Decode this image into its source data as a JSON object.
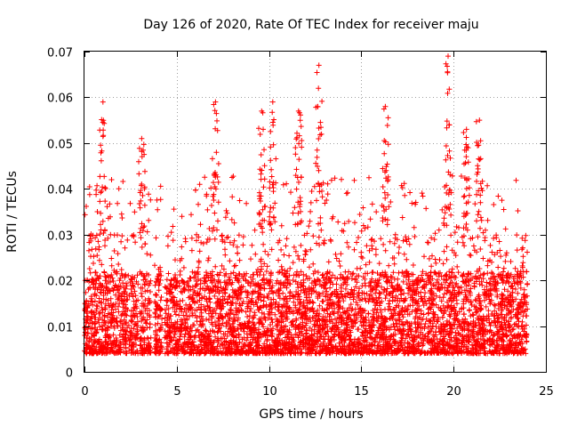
{
  "chart_data": {
    "type": "scatter",
    "title": "Day 126 of 2020, Rate Of TEC Index for receiver maju",
    "xlabel": "GPS time / hours",
    "ylabel": "ROTI / TECUs",
    "xlim": [
      0,
      25
    ],
    "ylim": [
      0,
      0.07
    ],
    "xticks": [
      0,
      5,
      10,
      15,
      20,
      25
    ],
    "xtick_labels": [
      "0",
      "5",
      "10",
      "15",
      "20",
      "25"
    ],
    "yticks": [
      0,
      0.01,
      0.02,
      0.03,
      0.04,
      0.05,
      0.06,
      0.07
    ],
    "ytick_labels": [
      "0",
      "0.01",
      "0.02",
      "0.03",
      "0.04",
      "0.05",
      "0.06",
      "0.07"
    ],
    "grid": true,
    "marker": "+",
    "series": [
      {
        "name": "ROTI",
        "color": "#ff0000",
        "x_range": [
          0,
          24
        ],
        "typical_range": [
          0.004,
          0.03
        ],
        "peaks": [
          {
            "x": 1.0,
            "y": 0.059
          },
          {
            "x": 3.1,
            "y": 0.051
          },
          {
            "x": 7.1,
            "y": 0.059
          },
          {
            "x": 9.6,
            "y": 0.057
          },
          {
            "x": 10.2,
            "y": 0.059
          },
          {
            "x": 11.6,
            "y": 0.057
          },
          {
            "x": 12.7,
            "y": 0.067
          },
          {
            "x": 16.3,
            "y": 0.058
          },
          {
            "x": 19.7,
            "y": 0.069
          },
          {
            "x": 20.7,
            "y": 0.053
          },
          {
            "x": 21.4,
            "y": 0.055
          }
        ],
        "gaps": [
          [
            2.9,
            3.0
          ],
          [
            3.6,
            3.8
          ],
          [
            4.2,
            4.35
          ]
        ]
      }
    ]
  }
}
